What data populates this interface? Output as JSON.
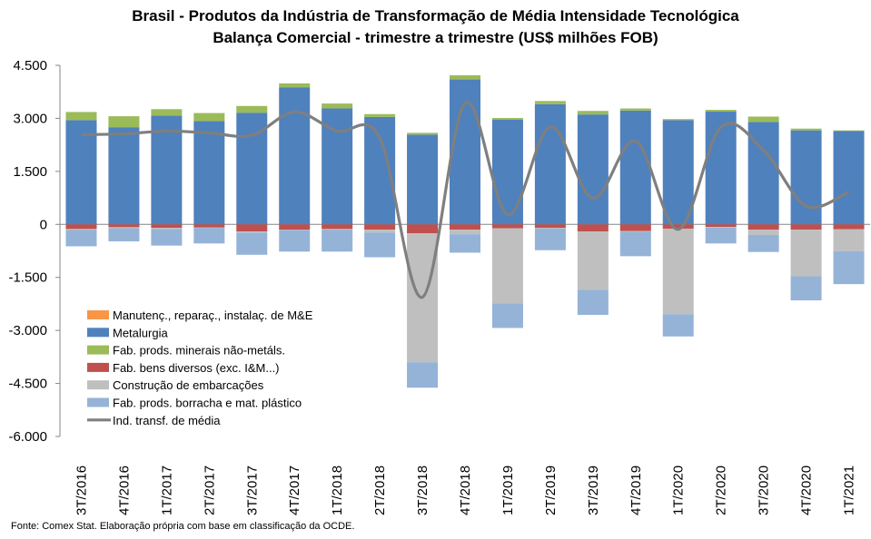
{
  "title_line1": "Brasil - Produtos da Indústria de Transformação de Média Intensidade Tecnológica",
  "title_line2": "Balança Comercial - trimestre a trimestre (US$ milhões FOB)",
  "source": "Fonte: Comex Stat. Elaboração própria com base em classificação da OCDE.",
  "chart_data": {
    "type": "bar",
    "stacked": true,
    "title": "Brasil - Produtos da Indústria de Transformação de Média Intensidade Tecnológica / Balança Comercial - trimestre a trimestre (US$ milhões FOB)",
    "xlabel": "",
    "ylabel": "",
    "ylim": [
      -6000,
      4500
    ],
    "yticks": [
      4500,
      3000,
      1500,
      0,
      -1500,
      -3000,
      -4500,
      -6000
    ],
    "ytick_labels": [
      "4.500",
      "3.000",
      "1.500",
      "0",
      "-1.500",
      "-3.000",
      "-4.500",
      "-6.000"
    ],
    "grid": false,
    "legend_position": "bottom-left",
    "categories": [
      "3T/2016",
      "4T/2016",
      "1T/2017",
      "2T/2017",
      "3T/2017",
      "4T/2017",
      "1T/2018",
      "2T/2018",
      "3T/2018",
      "4T/2018",
      "1T/2019",
      "2T/2019",
      "3T/2019",
      "4T/2019",
      "1T/2020",
      "2T/2020",
      "3T/2020",
      "4T/2020",
      "1T/2021"
    ],
    "series": [
      {
        "name": "Manutenç., reparaç., instalaç. de M&E",
        "type": "bar",
        "color": "#F79646",
        "values": [
          0,
          0,
          0,
          0,
          0,
          0,
          0,
          0,
          0,
          0,
          0,
          0,
          0,
          0,
          0,
          0,
          0,
          0,
          0
        ]
      },
      {
        "name": "Metalurgia",
        "type": "bar",
        "color": "#4F81BD",
        "values": [
          2950,
          2750,
          3080,
          2920,
          3160,
          3880,
          3280,
          3040,
          2540,
          4100,
          2960,
          3400,
          3110,
          3220,
          2950,
          3190,
          2900,
          2660,
          2640
        ]
      },
      {
        "name": "Fab. prods. minerais não-metáls.",
        "type": "bar",
        "color": "#9BBB59",
        "values": [
          230,
          310,
          180,
          230,
          190,
          110,
          140,
          80,
          50,
          120,
          50,
          90,
          100,
          60,
          30,
          50,
          150,
          50,
          20
        ]
      },
      {
        "name": "Fab. bens diversos (exc. I&M...)",
        "type": "bar",
        "color": "#C0504D",
        "values": [
          -130,
          -80,
          -100,
          -90,
          -200,
          -150,
          -130,
          -150,
          -250,
          -150,
          -110,
          -100,
          -200,
          -190,
          -120,
          -70,
          -150,
          -150,
          -140
        ]
      },
      {
        "name": "Construção de embarcações",
        "type": "bar",
        "color": "#BFBFBF",
        "values": [
          -30,
          -30,
          -30,
          -10,
          -30,
          -10,
          -20,
          -80,
          -3650,
          -130,
          -2130,
          -20,
          -1650,
          -20,
          -2420,
          -20,
          -150,
          -1320,
          -620
        ]
      },
      {
        "name": "Fab. prods. borracha e mat. plástico",
        "type": "bar",
        "color": "#95B3D7",
        "values": [
          -460,
          -370,
          -470,
          -440,
          -630,
          -610,
          -620,
          -700,
          -720,
          -520,
          -690,
          -610,
          -710,
          -690,
          -630,
          -450,
          -480,
          -680,
          -930
        ]
      },
      {
        "name": "Ind. transf. de média",
        "type": "line",
        "color": "#7F7F7F",
        "values": [
          2540,
          2560,
          2640,
          2590,
          2520,
          3180,
          2640,
          2450,
          -2060,
          3430,
          270,
          2760,
          740,
          2360,
          -140,
          2750,
          2100,
          520,
          920
        ]
      }
    ]
  }
}
